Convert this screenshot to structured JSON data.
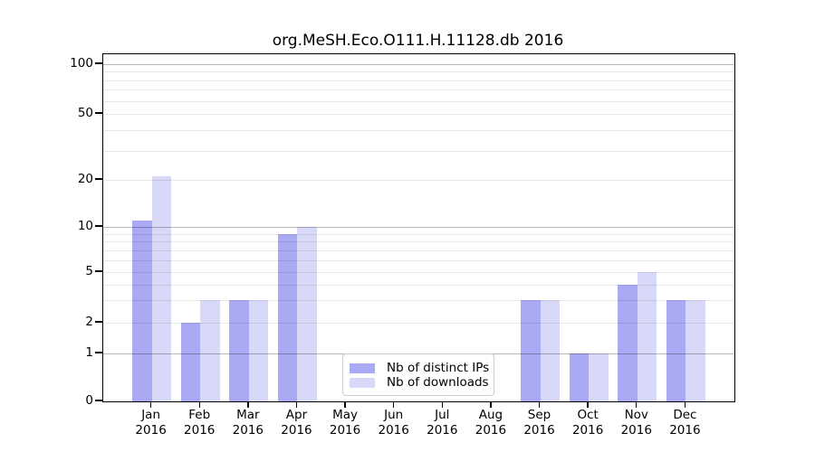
{
  "title": "org.MeSH.Eco.O111.H.11128.db 2016",
  "chart_data": {
    "type": "bar",
    "title": "org.MeSH.Eco.O111.H.11128.db 2016",
    "categories": [
      "Jan 2016",
      "Feb 2016",
      "Mar 2016",
      "Apr 2016",
      "May 2016",
      "Jun 2016",
      "Jul 2016",
      "Aug 2016",
      "Sep 2016",
      "Oct 2016",
      "Nov 2016",
      "Dec 2016"
    ],
    "series": [
      {
        "name": "Nb of distinct IPs",
        "color": "#a9a9f4",
        "values": [
          11,
          2,
          3,
          9,
          0,
          0,
          0,
          0,
          3,
          1,
          4,
          3
        ]
      },
      {
        "name": "Nb of downloads",
        "color": "#d8d8f8",
        "values": [
          21,
          3,
          3,
          10,
          0,
          0,
          0,
          0,
          3,
          1,
          5,
          3
        ]
      }
    ],
    "xlabel": "",
    "ylabel": "",
    "yscale": "log (linear below 1)",
    "ylim": [
      0,
      100
    ],
    "yticks": [
      0,
      1,
      2,
      5,
      10,
      20,
      50,
      100
    ],
    "major_grid_values": [
      1,
      10,
      100
    ],
    "minor_grid_values": [
      2,
      3,
      4,
      5,
      6,
      7,
      8,
      9,
      20,
      30,
      40,
      50,
      60,
      70,
      80,
      90
    ],
    "grid": true,
    "legend_position": "lower center"
  }
}
